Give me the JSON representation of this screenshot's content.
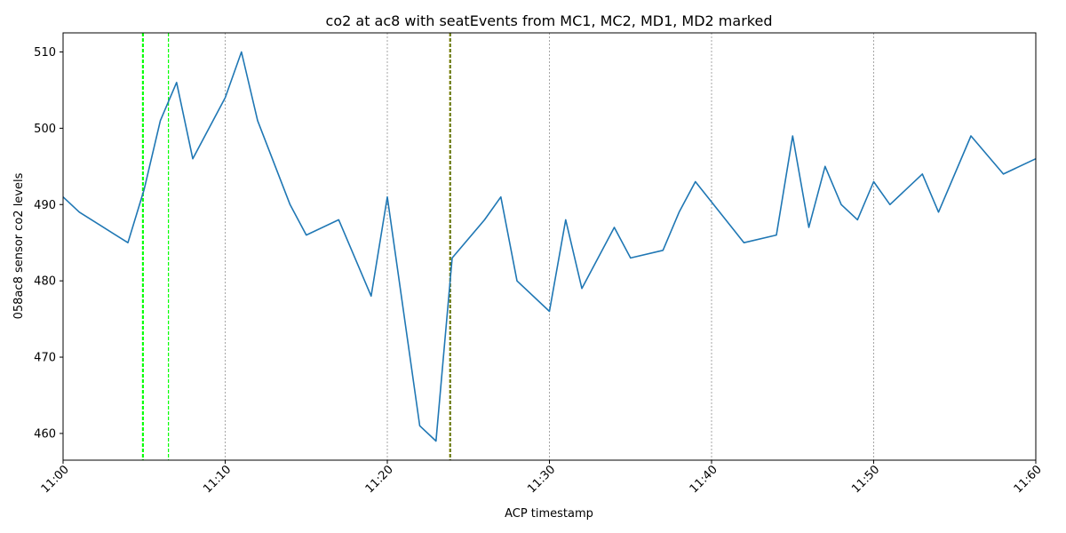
{
  "chart_data": {
    "type": "line",
    "title": "co2 at ac8 with seatEvents from MC1, MC2, MD1, MD2 marked",
    "xlabel": "ACP timestamp",
    "ylabel": "058ac8 sensor co2 levels",
    "xlim": [
      0,
      60
    ],
    "ylim": [
      456.5,
      512.5
    ],
    "x_ticks": [
      0,
      10,
      20,
      30,
      40,
      50,
      60
    ],
    "x_tick_labels": [
      "11:00",
      "11:10",
      "11:20",
      "11:30",
      "11:40",
      "11:50",
      "11:60"
    ],
    "y_ticks": [
      460,
      470,
      480,
      490,
      500,
      510
    ],
    "y_tick_labels": [
      "460",
      "470",
      "480",
      "490",
      "500",
      "510"
    ],
    "grid": "vertical gray dotted lines at x ticks",
    "legend": "none",
    "series": [
      {
        "color": "#1f77b4",
        "x": [
          0,
          1,
          4,
          5,
          6,
          7,
          8,
          10,
          11,
          12,
          14,
          15,
          17,
          19,
          20,
          22,
          23,
          24,
          26,
          27,
          28,
          30,
          31,
          32,
          34,
          35,
          37,
          38,
          39,
          42,
          44,
          45,
          46,
          47,
          48,
          49,
          50,
          51,
          53,
          54,
          56,
          58,
          60
        ],
        "y": [
          491,
          489,
          485,
          492,
          501,
          506,
          496,
          504,
          510,
          501,
          490,
          486,
          488,
          478,
          491,
          461,
          459,
          483,
          488,
          491,
          480,
          476,
          488,
          479,
          487,
          483,
          484,
          489,
          493,
          485,
          486,
          499,
          487,
          495,
          490,
          488,
          493,
          490,
          494,
          489,
          499,
          494,
          496
        ]
      }
    ],
    "event_markers": [
      {
        "x": 4.9,
        "color": "#00ff00",
        "style": "dashed"
      },
      {
        "x": 4.95,
        "color": "#00ff00",
        "style": "dashed"
      },
      {
        "x": 6.5,
        "color": "#00ff00",
        "style": "dashed"
      },
      {
        "x": 23.85,
        "color": "#808000",
        "style": "dashed"
      },
      {
        "x": 23.9,
        "color": "#556b00",
        "style": "dashed"
      }
    ]
  }
}
